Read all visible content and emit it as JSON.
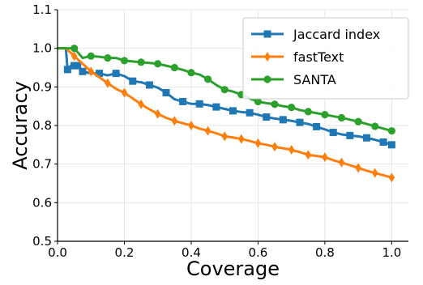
{
  "chart_data": {
    "type": "line",
    "xlabel": "Coverage",
    "ylabel": "Accuracy",
    "xlim": [
      0.0,
      1.05
    ],
    "ylim": [
      0.5,
      1.1
    ],
    "x_ticks": [
      "0.0",
      "0.2",
      "0.4",
      "0.6",
      "0.8",
      "1.0"
    ],
    "y_ticks": [
      "0.5",
      "0.6",
      "0.7",
      "0.8",
      "0.9",
      "1.0",
      "1.1"
    ],
    "grid": true,
    "legend_position": "top-right",
    "series": [
      {
        "name": "Jaccard index",
        "color": "#1f77b4",
        "marker": "square",
        "x": [
          0.0,
          0.025,
          0.03,
          0.04,
          0.05,
          0.06,
          0.075,
          0.1,
          0.125,
          0.15,
          0.175,
          0.2,
          0.225,
          0.25,
          0.275,
          0.3,
          0.325,
          0.35,
          0.375,
          0.4,
          0.425,
          0.45,
          0.475,
          0.5,
          0.525,
          0.55,
          0.575,
          0.6,
          0.625,
          0.65,
          0.675,
          0.7,
          0.725,
          0.75,
          0.775,
          0.8,
          0.825,
          0.85,
          0.875,
          0.9,
          0.925,
          0.95,
          0.975,
          1.0
        ],
        "y": [
          1.0,
          1.0,
          0.945,
          0.955,
          0.955,
          0.955,
          0.94,
          0.935,
          0.935,
          0.93,
          0.935,
          0.928,
          0.915,
          0.912,
          0.905,
          0.898,
          0.885,
          0.868,
          0.862,
          0.856,
          0.856,
          0.853,
          0.848,
          0.843,
          0.838,
          0.835,
          0.833,
          0.828,
          0.822,
          0.818,
          0.815,
          0.812,
          0.808,
          0.804,
          0.797,
          0.79,
          0.782,
          0.777,
          0.774,
          0.772,
          0.768,
          0.763,
          0.757,
          0.75
        ],
        "marker_every": 2
      },
      {
        "name": "fastText",
        "color": "#ff7f0e",
        "marker": "thin_diamond",
        "x": [
          0.0,
          0.025,
          0.05,
          0.075,
          0.1,
          0.125,
          0.15,
          0.175,
          0.2,
          0.225,
          0.25,
          0.275,
          0.3,
          0.325,
          0.35,
          0.375,
          0.4,
          0.425,
          0.45,
          0.475,
          0.5,
          0.525,
          0.55,
          0.575,
          0.6,
          0.625,
          0.65,
          0.675,
          0.7,
          0.725,
          0.75,
          0.775,
          0.8,
          0.825,
          0.85,
          0.875,
          0.9,
          0.925,
          0.95,
          0.975,
          1.0
        ],
        "y": [
          1.0,
          1.0,
          0.98,
          0.96,
          0.94,
          0.925,
          0.91,
          0.895,
          0.885,
          0.87,
          0.855,
          0.842,
          0.83,
          0.82,
          0.812,
          0.806,
          0.8,
          0.792,
          0.786,
          0.78,
          0.772,
          0.769,
          0.765,
          0.76,
          0.754,
          0.75,
          0.745,
          0.741,
          0.737,
          0.731,
          0.724,
          0.721,
          0.718,
          0.71,
          0.704,
          0.697,
          0.69,
          0.683,
          0.677,
          0.671,
          0.665
        ],
        "marker_every": 2
      },
      {
        "name": "SANTA",
        "color": "#2ca02c",
        "marker": "circle",
        "x": [
          0.0,
          0.025,
          0.05,
          0.075,
          0.1,
          0.125,
          0.15,
          0.175,
          0.2,
          0.225,
          0.25,
          0.275,
          0.3,
          0.325,
          0.35,
          0.375,
          0.4,
          0.425,
          0.45,
          0.475,
          0.5,
          0.525,
          0.55,
          0.575,
          0.6,
          0.625,
          0.65,
          0.675,
          0.7,
          0.725,
          0.75,
          0.775,
          0.8,
          0.825,
          0.85,
          0.875,
          0.9,
          0.925,
          0.95,
          0.975,
          1.0
        ],
        "y": [
          1.0,
          1.0,
          1.0,
          0.975,
          0.98,
          0.978,
          0.975,
          0.975,
          0.968,
          0.966,
          0.964,
          0.962,
          0.96,
          0.955,
          0.95,
          0.944,
          0.937,
          0.932,
          0.92,
          0.905,
          0.893,
          0.888,
          0.88,
          0.87,
          0.862,
          0.858,
          0.855,
          0.85,
          0.847,
          0.84,
          0.836,
          0.832,
          0.828,
          0.824,
          0.82,
          0.815,
          0.81,
          0.804,
          0.798,
          0.792,
          0.786
        ],
        "marker_every": 2
      }
    ]
  }
}
